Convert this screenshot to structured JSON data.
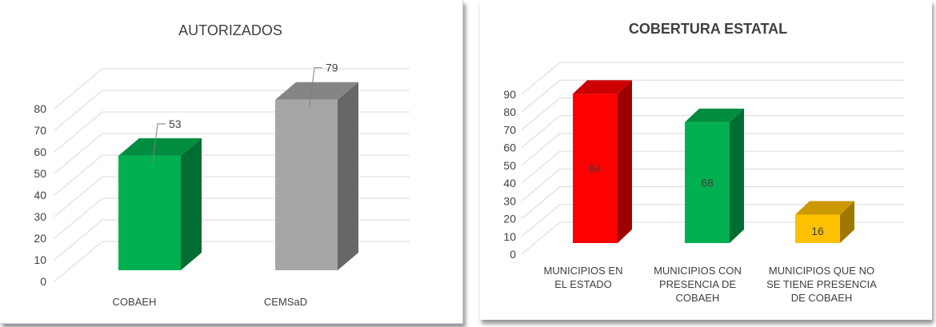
{
  "chart_data": [
    {
      "type": "bar",
      "title": "AUTORIZADOS",
      "categories": [
        "COBAEH",
        "CEMSaD"
      ],
      "values": [
        53,
        79
      ],
      "ylim": [
        0,
        80
      ],
      "yticks": [
        0,
        10,
        20,
        30,
        40,
        50,
        60,
        70,
        80
      ],
      "grid": true,
      "style": "3d-column",
      "colors": [
        "#00b050",
        "#a6a6a6"
      ],
      "data_labels": [
        "53",
        "79"
      ]
    },
    {
      "type": "bar",
      "title": "COBERTURA ESTATAL",
      "categories": [
        [
          "MUNICIPIOS EN",
          "EL ESTADO"
        ],
        [
          "MUNICIPIOS CON",
          "PRESENCIA DE",
          "COBAEH"
        ],
        [
          "MUNICIPIOS QUE NO",
          "SE TIENE PRESENCIA",
          "DE COBAEH"
        ]
      ],
      "values": [
        84,
        68,
        16
      ],
      "ylim": [
        0,
        90
      ],
      "yticks": [
        0,
        10,
        20,
        30,
        40,
        50,
        60,
        70,
        80,
        90
      ],
      "grid": true,
      "style": "3d-column",
      "colors": [
        "#ff0000",
        "#00b050",
        "#ffc000"
      ],
      "data_labels": [
        "84",
        "68",
        "16"
      ]
    }
  ]
}
